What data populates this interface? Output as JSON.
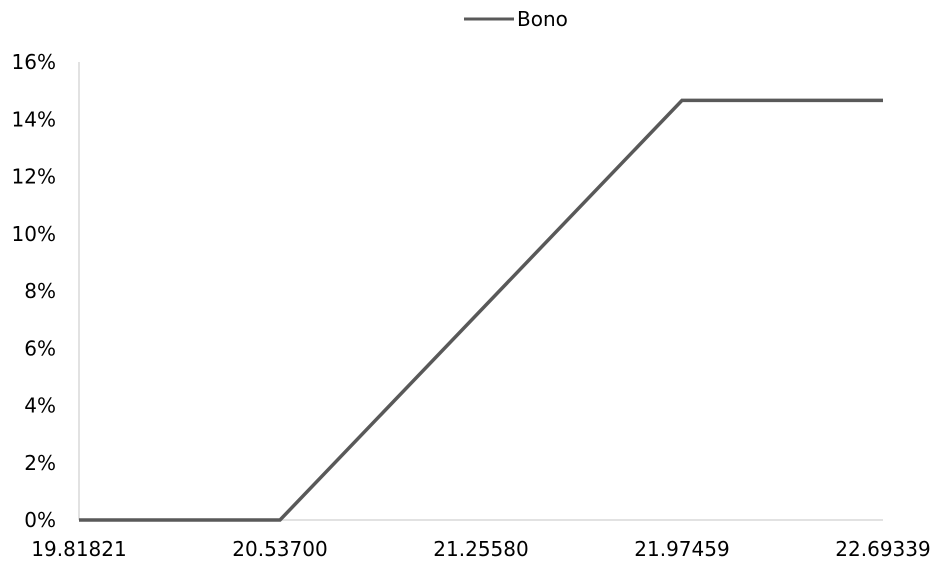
{
  "chart_data": {
    "type": "line",
    "x": [
      19.81821,
      20.537,
      21.2558,
      21.97459,
      22.69339
    ],
    "x_tick_labels": [
      "19.81821",
      "20.53700",
      "21.25580",
      "21.97459",
      "22.69339"
    ],
    "y_tick_labels": [
      "0%",
      "2%",
      "4%",
      "6%",
      "8%",
      "10%",
      "12%",
      "14%",
      "16%"
    ],
    "ylim": [
      0,
      16
    ],
    "series": [
      {
        "name": "Bono",
        "color": "#595959",
        "points": [
          [
            19.81821,
            0
          ],
          [
            20.537,
            0
          ],
          [
            21.97459,
            14.66
          ],
          [
            22.69339,
            14.66
          ]
        ]
      }
    ],
    "legend": "top-center",
    "grid": false
  }
}
